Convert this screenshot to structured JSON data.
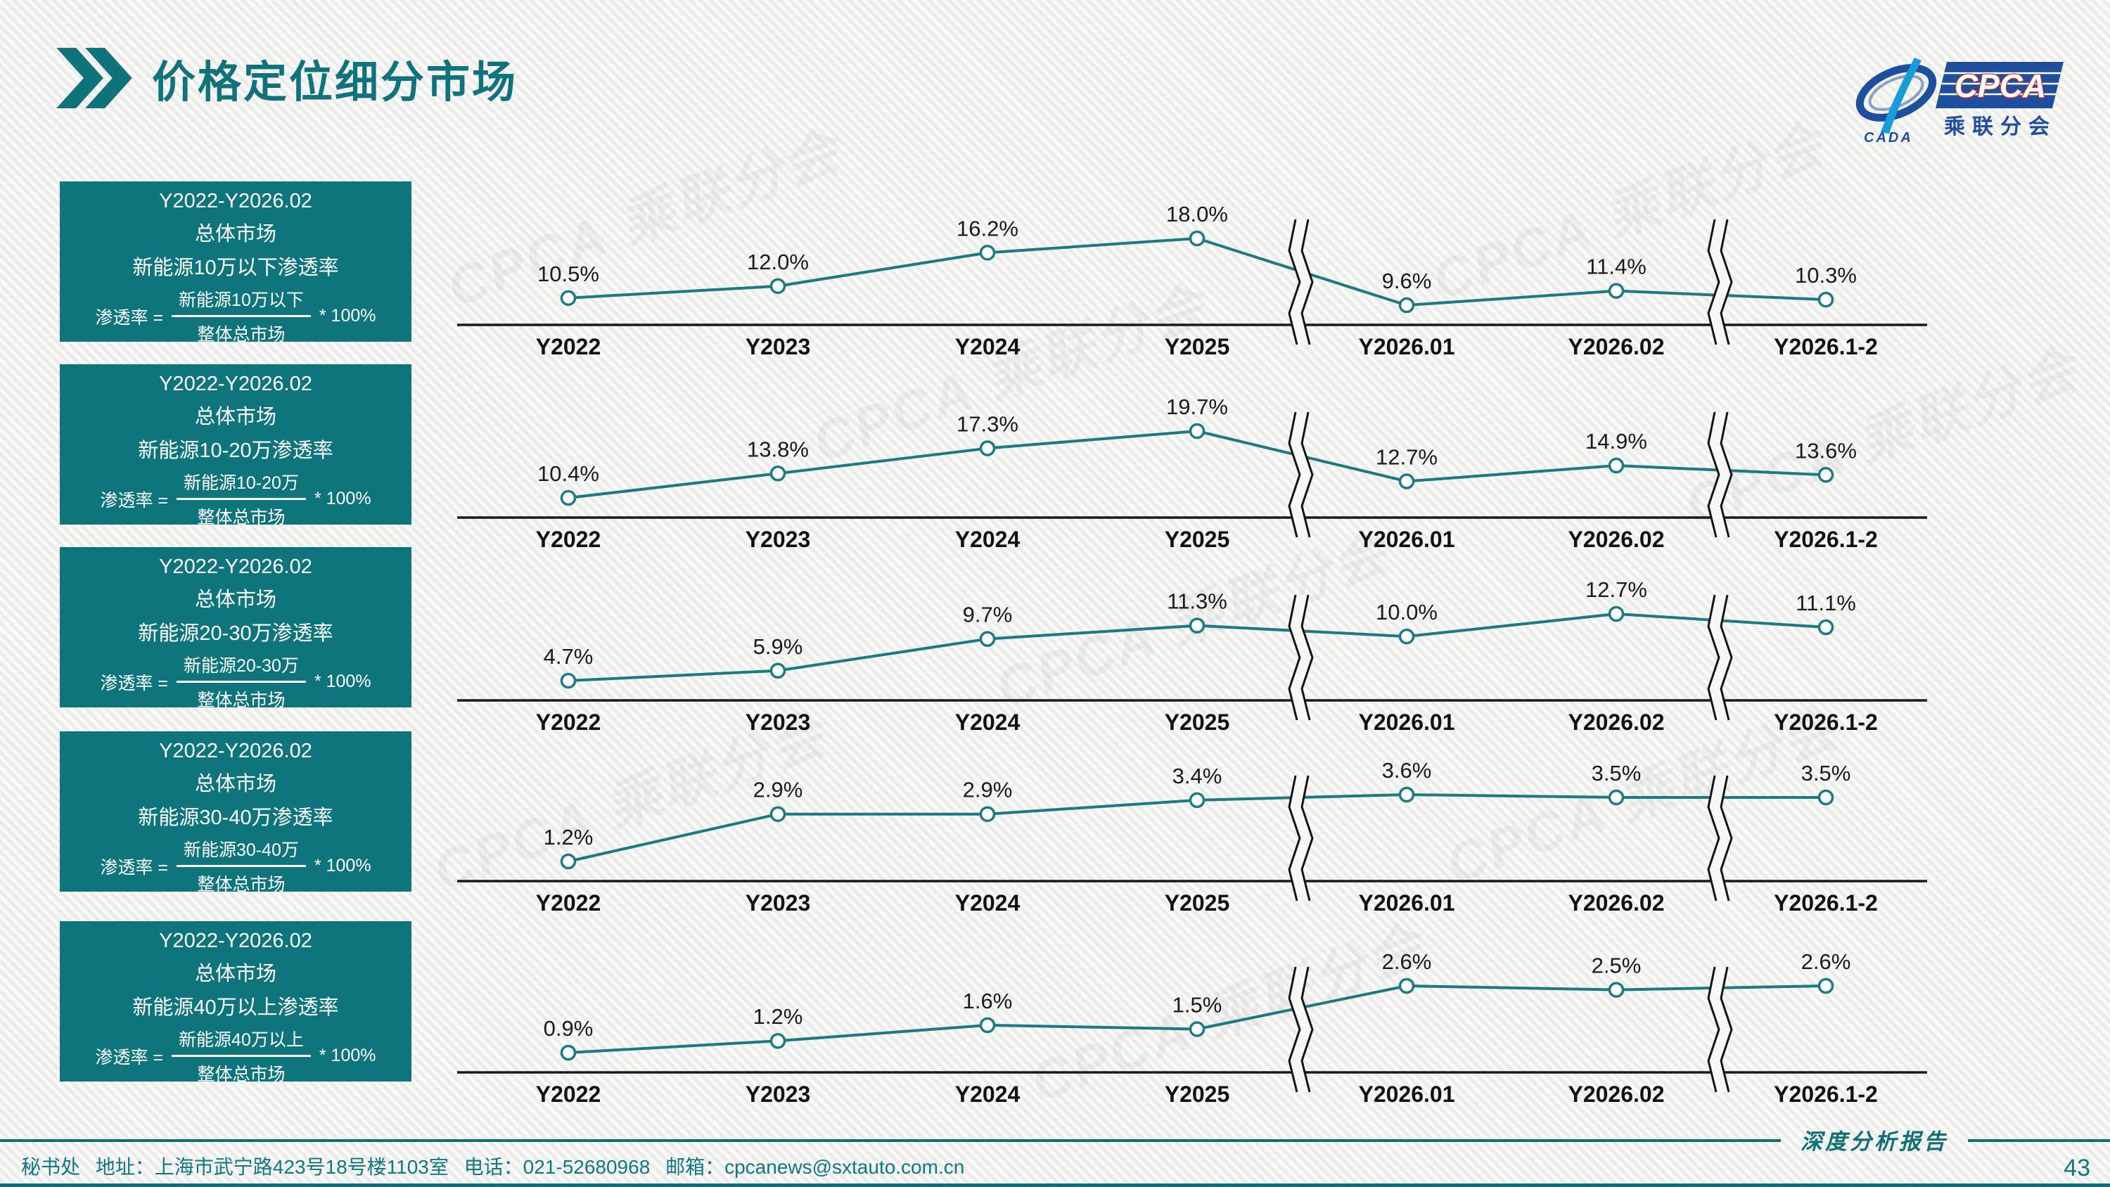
{
  "header": {
    "title": "价格定位细分市场"
  },
  "logo": {
    "cpca": "CPCA",
    "cada": "CADA",
    "subtitle": "乘联分会"
  },
  "watermark": "CPCA 乘联分会",
  "boxes": [
    {
      "period": "Y2022-Y2026.02",
      "market": "总体市场",
      "metric": "新能源10万以下渗透率",
      "formula": {
        "lhs": "渗透率 =",
        "numerator": "新能源10万以下",
        "denominator": "整体总市场",
        "multiplier": "* 100%"
      }
    },
    {
      "period": "Y2022-Y2026.02",
      "market": "总体市场",
      "metric": "新能源10-20万渗透率",
      "formula": {
        "lhs": "渗透率 =",
        "numerator": "新能源10-20万",
        "denominator": "整体总市场",
        "multiplier": "* 100%"
      }
    },
    {
      "period": "Y2022-Y2026.02",
      "market": "总体市场",
      "metric": "新能源20-30万渗透率",
      "formula": {
        "lhs": "渗透率 =",
        "numerator": "新能源20-30万",
        "denominator": "整体总市场",
        "multiplier": "* 100%"
      }
    },
    {
      "period": "Y2022-Y2026.02",
      "market": "总体市场",
      "metric": "新能源30-40万渗透率",
      "formula": {
        "lhs": "渗透率 =",
        "numerator": "新能源30-40万",
        "denominator": "整体总市场",
        "multiplier": "* 100%"
      }
    },
    {
      "period": "Y2022-Y2026.02",
      "market": "总体市场",
      "metric": "新能源40万以上渗透率",
      "formula": {
        "lhs": "渗透率 =",
        "numerator": "新能源40万以上",
        "denominator": "整体总市场",
        "multiplier": "* 100%"
      }
    }
  ],
  "chart_data": [
    {
      "type": "line",
      "title": "总体市场 新能源10万以下渗透率",
      "categories": [
        "Y2022",
        "Y2023",
        "Y2024",
        "Y2025",
        "Y2026.01",
        "Y2026.02",
        "Y2026.1-2"
      ],
      "values": [
        10.5,
        12.0,
        16.2,
        18.0,
        9.6,
        11.4,
        10.3
      ],
      "labels": [
        "10.5%",
        "12.0%",
        "16.2%",
        "18.0%",
        "9.6%",
        "11.4%",
        "10.3%"
      ],
      "axis_breaks_after_index": [
        3,
        5
      ],
      "line_color": "#1B7A82",
      "marker": "open-circle",
      "grid": false,
      "legend": "none"
    },
    {
      "type": "line",
      "title": "总体市场 新能源10-20万渗透率",
      "categories": [
        "Y2022",
        "Y2023",
        "Y2024",
        "Y2025",
        "Y2026.01",
        "Y2026.02",
        "Y2026.1-2"
      ],
      "values": [
        10.4,
        13.8,
        17.3,
        19.7,
        12.7,
        14.9,
        13.6
      ],
      "labels": [
        "10.4%",
        "13.8%",
        "17.3%",
        "19.7%",
        "12.7%",
        "14.9%",
        "13.6%"
      ],
      "axis_breaks_after_index": [
        3,
        5
      ],
      "line_color": "#1B7A82",
      "marker": "open-circle",
      "grid": false,
      "legend": "none"
    },
    {
      "type": "line",
      "title": "总体市场 新能源20-30万渗透率",
      "categories": [
        "Y2022",
        "Y2023",
        "Y2024",
        "Y2025",
        "Y2026.01",
        "Y2026.02",
        "Y2026.1-2"
      ],
      "values": [
        4.7,
        5.9,
        9.7,
        11.3,
        10.0,
        12.7,
        11.1
      ],
      "labels": [
        "4.7%",
        "5.9%",
        "9.7%",
        "11.3%",
        "10.0%",
        "12.7%",
        "11.1%"
      ],
      "axis_breaks_after_index": [
        3,
        5
      ],
      "line_color": "#1B7A82",
      "marker": "open-circle",
      "grid": false,
      "legend": "none"
    },
    {
      "type": "line",
      "title": "总体市场 新能源30-40万渗透率",
      "categories": [
        "Y2022",
        "Y2023",
        "Y2024",
        "Y2025",
        "Y2026.01",
        "Y2026.02",
        "Y2026.1-2"
      ],
      "values": [
        1.2,
        2.9,
        2.9,
        3.4,
        3.6,
        3.5,
        3.5
      ],
      "labels": [
        "1.2%",
        "2.9%",
        "2.9%",
        "3.4%",
        "3.6%",
        "3.5%",
        "3.5%"
      ],
      "axis_breaks_after_index": [
        3,
        5
      ],
      "line_color": "#1B7A82",
      "marker": "open-circle",
      "grid": false,
      "legend": "none"
    },
    {
      "type": "line",
      "title": "总体市场 新能源40万以上渗透率",
      "categories": [
        "Y2022",
        "Y2023",
        "Y2024",
        "Y2025",
        "Y2026.01",
        "Y2026.02",
        "Y2026.1-2"
      ],
      "values": [
        0.9,
        1.2,
        1.6,
        1.5,
        2.6,
        2.5,
        2.6
      ],
      "labels": [
        "0.9%",
        "1.2%",
        "1.6%",
        "1.5%",
        "2.6%",
        "2.5%",
        "2.6%"
      ],
      "axis_breaks_after_index": [
        3,
        5
      ],
      "line_color": "#1B7A82",
      "marker": "open-circle",
      "grid": false,
      "legend": "none"
    }
  ],
  "footer": {
    "secretariat": "秘书处",
    "address": "地址：上海市武宁路423号18号楼1103室",
    "phone": "电话：021-52680968",
    "email": "邮箱：cpcanews@sxtauto.com.cn",
    "report_label": "深度分析报告",
    "page_number": "43"
  }
}
